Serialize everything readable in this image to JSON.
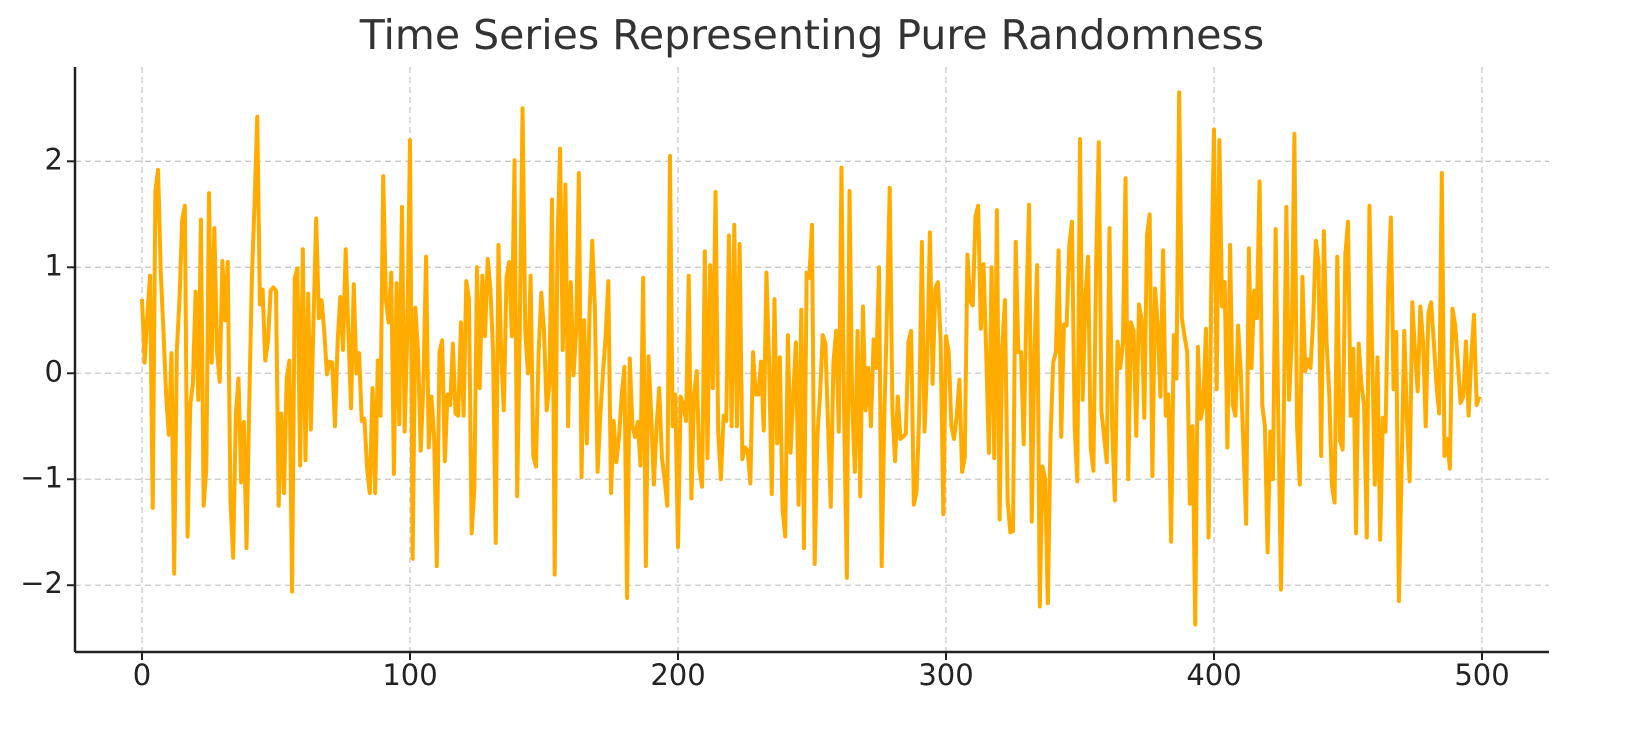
{
  "chart_data": {
    "type": "line",
    "title": "Time Series Representing Pure Randomness",
    "color": "#ffab00",
    "grid": true,
    "xlim": [
      -25,
      525
    ],
    "xticks": [
      0,
      100,
      200,
      300,
      400,
      500
    ],
    "ylim": [
      -2.63,
      2.89
    ],
    "yticks": [
      {
        "value": -2,
        "label": "−2"
      },
      {
        "value": -1,
        "label": "−1"
      },
      0,
      1,
      2
    ],
    "values": [
      0.7,
      0.1,
      0.55,
      0.92,
      -1.27,
      1.72,
      1.92,
      0.95,
      0.4,
      -0.2,
      -0.58,
      0.19,
      -1.89,
      0.22,
      0.7,
      1.45,
      1.58,
      -1.54,
      -0.3,
      -0.1,
      0.77,
      -0.25,
      1.45,
      -1.25,
      -0.9,
      1.7,
      0.1,
      1.37,
      0.2,
      -0.08,
      1.06,
      0.5,
      1.05,
      -1.2,
      -1.74,
      -0.4,
      -0.05,
      -1.03,
      -0.46,
      -1.65,
      -0.3,
      0.9,
      1.6,
      2.42,
      0.65,
      0.79,
      0.12,
      0.3,
      0.78,
      0.81,
      0.78,
      -1.25,
      -0.38,
      -1.13,
      -0.05,
      0.12,
      -2.06,
      0.9,
      0.99,
      -0.87,
      1.17,
      -0.82,
      0.75,
      -0.53,
      0.5,
      1.46,
      0.52,
      0.69,
      0.4,
      -0.01,
      0.11,
      0.1,
      -0.5,
      0.3,
      0.72,
      0.22,
      1.17,
      0.4,
      -0.33,
      0.84,
      0.0,
      0.19,
      -0.45,
      -0.43,
      -0.9,
      -1.13,
      -0.14,
      -1.13,
      0.12,
      -0.4,
      1.86,
      0.7,
      0.48,
      0.95,
      -0.95,
      0.85,
      -0.48,
      1.57,
      -0.55,
      0.4,
      2.2,
      -1.75,
      0.62,
      0.2,
      -0.73,
      -0.1,
      1.1,
      -0.7,
      -0.22,
      -0.6,
      -1.82,
      0.2,
      0.31,
      -0.83,
      -0.2,
      -0.3,
      0.28,
      -0.38,
      -0.4,
      0.48,
      -0.4,
      0.87,
      0.7,
      -1.51,
      -1.1,
      1.0,
      -0.14,
      0.92,
      0.35,
      1.08,
      0.8,
      0.2,
      -1.6,
      1.21,
      0.2,
      -0.35,
      0.9,
      1.05,
      0.35,
      2.01,
      -1.16,
      0.5,
      2.5,
      0.4,
      0.0,
      0.92,
      -0.78,
      -0.88,
      0.2,
      0.76,
      0.4,
      -0.35,
      -0.1,
      1.64,
      -1.9,
      1.2,
      2.12,
      0.22,
      1.78,
      -0.5,
      0.86,
      -0.02,
      0.4,
      1.89,
      -0.98,
      0.5,
      -0.66,
      0.58,
      1.25,
      0.6,
      -0.93,
      -0.4,
      0.0,
      0.35,
      0.87,
      -1.13,
      -0.45,
      -0.84,
      -0.6,
      -0.2,
      0.06,
      -2.12,
      0.14,
      -0.5,
      -0.6,
      -0.46,
      -0.87,
      0.9,
      -1.82,
      0.16,
      -0.4,
      -1.05,
      -0.5,
      -0.14,
      -0.8,
      -1.0,
      -1.25,
      2.05,
      -0.5,
      -0.2,
      -1.64,
      -0.22,
      -0.3,
      -0.45,
      0.92,
      -1.18,
      -0.2,
      0.02,
      -0.9,
      -1.07,
      1.15,
      -0.8,
      1.02,
      -0.14,
      1.71,
      -0.56,
      -1.0,
      -0.4,
      -0.45,
      1.3,
      -0.5,
      1.4,
      -0.5,
      1.22,
      -0.81,
      -0.7,
      -0.73,
      -1.04,
      0.2,
      -0.2,
      -0.2,
      0.11,
      -0.54,
      0.95,
      0.1,
      -1.14,
      0.7,
      -0.66,
      0.15,
      -1.28,
      -1.54,
      0.36,
      -0.75,
      -0.2,
      0.29,
      -1.24,
      0.6,
      -1.65,
      0.95,
      0.9,
      1.4,
      -1.8,
      -0.6,
      -0.2,
      0.36,
      0.28,
      -0.5,
      -1.26,
      0.1,
      0.4,
      -0.55,
      1.94,
      -0.4,
      -1.93,
      1.72,
      -0.3,
      -0.93,
      0.4,
      -1.16,
      0.63,
      -0.35,
      0.05,
      -0.5,
      0.32,
      0.05,
      1.0,
      -1.82,
      -0.4,
      0.6,
      1.75,
      -0.36,
      -0.83,
      -0.22,
      -0.62,
      -0.6,
      -0.57,
      0.3,
      0.4,
      -1.24,
      -1.12,
      -0.4,
      1.24,
      -0.55,
      0.11,
      1.33,
      -0.1,
      0.8,
      0.86,
      0.3,
      -1.33,
      0.35,
      0.2,
      -0.5,
      -0.62,
      -0.4,
      -0.06,
      -0.93,
      -0.8,
      1.12,
      0.68,
      0.64,
      1.48,
      1.58,
      0.42,
      1.03,
      0.2,
      -0.75,
      1.0,
      -0.8,
      1.54,
      -1.38,
      0.25,
      0.69,
      -1.2,
      -1.5,
      -1.49,
      1.24,
      0.2,
      0.2,
      -0.67,
      0.6,
      1.59,
      -1.4,
      0.2,
      1.02,
      -2.2,
      -0.88,
      -1.0,
      -2.17,
      -0.6,
      0.1,
      0.2,
      1.16,
      -0.6,
      0.46,
      0.45,
      1.2,
      1.43,
      -0.5,
      -1.02,
      2.21,
      -0.25,
      0.7,
      1.1,
      -0.7,
      -0.92,
      1.0,
      2.18,
      -0.36,
      -0.6,
      -0.84,
      1.37,
      -0.5,
      -1.2,
      0.3,
      0.05,
      0.28,
      1.84,
      -1.0,
      0.48,
      0.4,
      -0.59,
      0.65,
      0.5,
      -0.42,
      1.3,
      1.5,
      -0.97,
      0.8,
      0.45,
      -0.22,
      1.16,
      -0.4,
      -0.2,
      -1.59,
      0.36,
      -0.05,
      2.65,
      0.52,
      0.35,
      0.2,
      -1.23,
      -0.5,
      -2.37,
      0.25,
      -0.43,
      -0.3,
      0.42,
      -1.55,
      0.9,
      2.3,
      -0.15,
      2.2,
      0.63,
      0.86,
      -0.7,
      1.21,
      -0.3,
      -0.4,
      0.45,
      0.0,
      -0.7,
      -1.42,
      1.18,
      0.05,
      0.78,
      0.52,
      1.81,
      -0.3,
      -0.5,
      -1.69,
      -0.55,
      -1.0,
      1.36,
      -0.42,
      -2.04,
      -0.5,
      1.57,
      -0.25,
      0.3,
      2.26,
      -0.5,
      -1.05,
      0.91,
      0.02,
      0.13,
      0.05,
      0.5,
      1.25,
      1.05,
      -0.78,
      1.34,
      0.3,
      -0.2,
      -1.06,
      -1.22,
      1.1,
      -0.63,
      -0.72,
      1.12,
      1.43,
      -0.4,
      0.23,
      -1.51,
      0.28,
      -0.1,
      -0.3,
      -1.55,
      1.58,
      0.2,
      -1.05,
      0.15,
      -1.57,
      -0.42,
      -0.55,
      0.8,
      1.47,
      -0.15,
      0.39,
      -2.15,
      -0.9,
      0.4,
      -0.45,
      -1.02,
      0.67,
      0.2,
      -0.17,
      0.63,
      0.3,
      -0.5,
      0.57,
      0.67,
      0.3,
      -0.1,
      -0.38,
      1.89,
      -0.78,
      -0.62,
      -0.9,
      0.61,
      0.45,
      0.1,
      -0.28,
      -0.22,
      0.3,
      -0.4,
      0.15,
      0.55,
      -0.3,
      -0.22
    ]
  }
}
